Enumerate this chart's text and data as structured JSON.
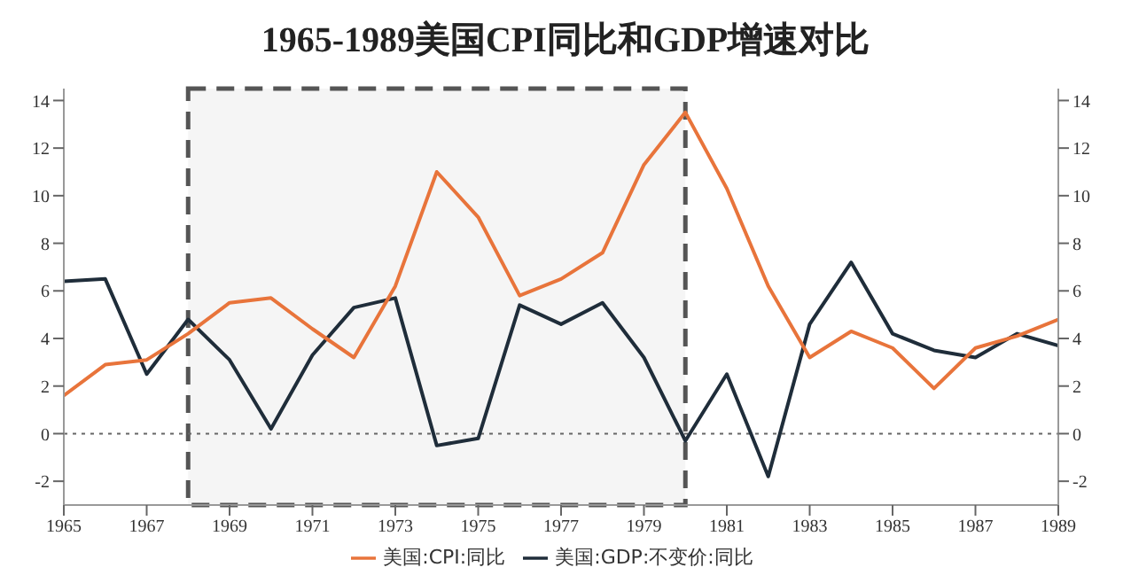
{
  "chart_data": {
    "type": "line",
    "title": "1965-1989美国CPI同比和GDP增速对比",
    "x": [
      1965,
      1966,
      1967,
      1968,
      1969,
      1970,
      1971,
      1972,
      1973,
      1974,
      1975,
      1976,
      1977,
      1978,
      1979,
      1980,
      1981,
      1982,
      1983,
      1984,
      1985,
      1986,
      1987,
      1988,
      1989
    ],
    "series": [
      {
        "name": "美国:GDP:不变价:同比",
        "color": "#1f2d3a",
        "values": [
          6.4,
          6.5,
          2.5,
          4.8,
          3.1,
          0.2,
          3.3,
          5.3,
          5.7,
          -0.5,
          -0.2,
          5.4,
          4.6,
          5.5,
          3.2,
          -0.3,
          2.5,
          -1.8,
          4.6,
          7.2,
          4.2,
          3.5,
          3.2,
          4.2,
          3.7
        ]
      },
      {
        "name": "美国:CPI:同比",
        "color": "#e8743b",
        "values": [
          1.6,
          2.9,
          3.1,
          4.2,
          5.5,
          5.7,
          4.4,
          3.2,
          6.2,
          11.0,
          9.1,
          5.8,
          6.5,
          7.6,
          11.3,
          13.5,
          10.3,
          6.2,
          3.2,
          4.3,
          3.6,
          1.9,
          3.6,
          4.1,
          4.8
        ]
      }
    ],
    "xlim": [
      1965,
      1989
    ],
    "xticks": [
      1965,
      1967,
      1969,
      1971,
      1973,
      1975,
      1977,
      1979,
      1981,
      1983,
      1985,
      1987,
      1989
    ],
    "ylim": [
      -3,
      14.5
    ],
    "yticks": [
      -2,
      0,
      2,
      4,
      6,
      8,
      10,
      12,
      14
    ],
    "y2lim": [
      -3,
      14.5
    ],
    "y2ticks": [
      -2,
      0,
      2,
      4,
      6,
      8,
      10,
      12,
      14
    ],
    "ref_lines": [
      {
        "axis": "y",
        "value": 0,
        "color": "#666666",
        "line_style": "dotted"
      }
    ],
    "bands": [
      {
        "axis": "x",
        "from": 1968,
        "to": 1980,
        "color": "#555555"
      }
    ],
    "grid": false,
    "legend": "bottom",
    "marker": "none",
    "line_style": "solid"
  }
}
